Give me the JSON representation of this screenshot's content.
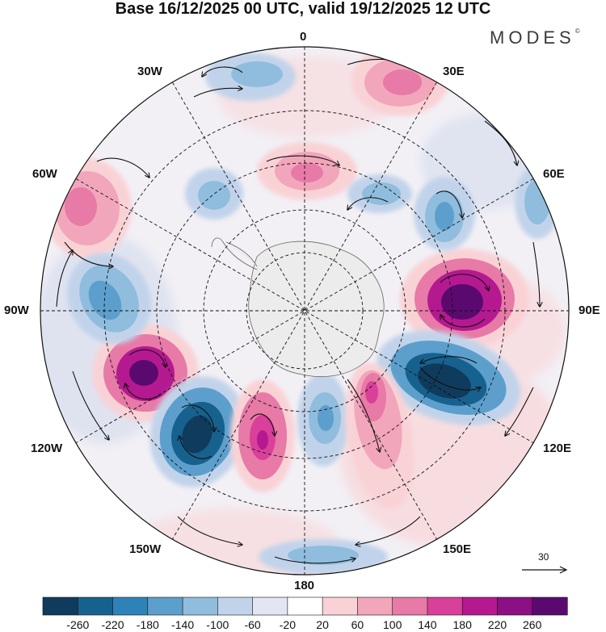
{
  "title": "Base 16/12/2025 00 UTC, valid 19/12/2025 12 UTC",
  "brand": "MODES",
  "brand_mark": "©",
  "longitude_labels": {
    "lon_0": "0",
    "lon_30e": "30E",
    "lon_60e": "60E",
    "lon_90e": "90E",
    "lon_120e": "120E",
    "lon_150e": "150E",
    "lon_180": "180",
    "lon_150w": "150W",
    "lon_120w": "120W",
    "lon_90w": "90W",
    "lon_60w": "60W",
    "lon_30w": "30W"
  },
  "reference_vector": {
    "label": "30"
  },
  "colorbar": {
    "labels": [
      "-260",
      "-220",
      "-180",
      "-140",
      "-100",
      "-60",
      "-20",
      "20",
      "60",
      "100",
      "140",
      "180",
      "220",
      "260"
    ],
    "colors": [
      "#0f3b5c",
      "#17618f",
      "#2f82b8",
      "#5d9fcc",
      "#90bddd",
      "#c1d3ea",
      "#e3e6f2",
      "#ffffff",
      "#f9d2d6",
      "#f2a6bb",
      "#e77aa6",
      "#d94099",
      "#b51990",
      "#8c0f84",
      "#5a0a6e"
    ]
  },
  "map_features": {
    "anomalies": [
      {
        "name": "anomaly-high-90e",
        "value": 280
      },
      {
        "name": "anomaly-low-120e",
        "value": -280
      },
      {
        "name": "anomaly-high-100w",
        "value": 240
      },
      {
        "name": "anomaly-low-135w",
        "value": -260
      },
      {
        "name": "anomaly-high-165w",
        "value": 200
      },
      {
        "name": "anomaly-low-175e",
        "value": -140
      },
      {
        "name": "anomaly-high-155e",
        "value": 180
      },
      {
        "name": "anomaly-high-0",
        "value": 120
      },
      {
        "name": "anomaly-high-30e",
        "value": 120
      },
      {
        "name": "anomaly-high-60w",
        "value": 110
      },
      {
        "name": "anomaly-low-80w",
        "value": -140
      },
      {
        "name": "anomaly-low-60e",
        "value": -120
      },
      {
        "name": "anomaly-low-45e",
        "value": -110
      },
      {
        "name": "anomaly-low-30w",
        "value": -100
      },
      {
        "name": "anomaly-low-20w",
        "value": -90
      },
      {
        "name": "anomaly-low-75e",
        "value": -90
      },
      {
        "name": "anomaly-low-180",
        "value": -110
      }
    ]
  }
}
